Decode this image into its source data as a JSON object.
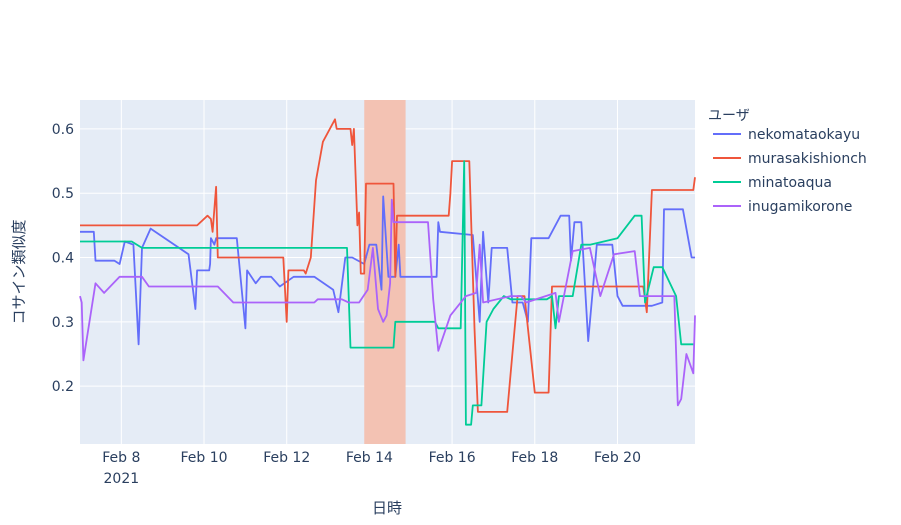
{
  "chart_data": {
    "type": "line",
    "xlabel": "日時",
    "ylabel": "コサイン類似度",
    "xlim": [
      "2021-02-07 00:00",
      "2021-02-21 21:00"
    ],
    "ylim": [
      0.11,
      0.645
    ],
    "x_ticks": [
      {
        "date": "2021-02-08",
        "label": "Feb 8",
        "sublabel": "2021"
      },
      {
        "date": "2021-02-10",
        "label": "Feb 10"
      },
      {
        "date": "2021-02-12",
        "label": "Feb 12"
      },
      {
        "date": "2021-02-14",
        "label": "Feb 14"
      },
      {
        "date": "2021-02-16",
        "label": "Feb 16"
      },
      {
        "date": "2021-02-18",
        "label": "Feb 18"
      },
      {
        "date": "2021-02-20",
        "label": "Feb 20"
      }
    ],
    "y_ticks": [
      0.2,
      0.3,
      0.4,
      0.5,
      0.6
    ],
    "grid": true,
    "background": "#e5ecf6",
    "highlight_band": {
      "x0": "2021-02-13 21:00",
      "x1": "2021-02-14 21:00",
      "color": "#f3c2b3"
    },
    "legend": {
      "title": "ユーザ",
      "position": "right"
    },
    "series": [
      {
        "name": "nekomataokayu",
        "color": "#636efa",
        "points": [
          [
            "2021-02-07 00:00",
            0.44
          ],
          [
            "2021-02-07 08:00",
            0.44
          ],
          [
            "2021-02-07 09:00",
            0.395
          ],
          [
            "2021-02-07 20:00",
            0.395
          ],
          [
            "2021-02-07 23:00",
            0.39
          ],
          [
            "2021-02-08 02:00",
            0.425
          ],
          [
            "2021-02-08 07:00",
            0.42
          ],
          [
            "2021-02-08 10:00",
            0.265
          ],
          [
            "2021-02-08 12:00",
            0.415
          ],
          [
            "2021-02-08 17:00",
            0.445
          ],
          [
            "2021-02-09 15:00",
            0.405
          ],
          [
            "2021-02-09 19:00",
            0.32
          ],
          [
            "2021-02-09 20:00",
            0.38
          ],
          [
            "2021-02-10 03:00",
            0.38
          ],
          [
            "2021-02-10 03:30",
            0.39
          ],
          [
            "2021-02-10 04:00",
            0.43
          ],
          [
            "2021-02-10 06:00",
            0.42
          ],
          [
            "2021-02-10 07:00",
            0.43
          ],
          [
            "2021-02-10 19:00",
            0.43
          ],
          [
            "2021-02-11 00:00",
            0.29
          ],
          [
            "2021-02-11 01:00",
            0.38
          ],
          [
            "2021-02-11 06:00",
            0.36
          ],
          [
            "2021-02-11 09:00",
            0.37
          ],
          [
            "2021-02-11 15:00",
            0.37
          ],
          [
            "2021-02-11 20:00",
            0.355
          ],
          [
            "2021-02-12 04:00",
            0.37
          ],
          [
            "2021-02-12 16:00",
            0.37
          ],
          [
            "2021-02-13 03:00",
            0.35
          ],
          [
            "2021-02-13 06:00",
            0.315
          ],
          [
            "2021-02-13 10:00",
            0.4
          ],
          [
            "2021-02-13 14:00",
            0.4
          ],
          [
            "2021-02-13 21:00",
            0.39
          ],
          [
            "2021-02-14 00:00",
            0.42
          ],
          [
            "2021-02-14 04:00",
            0.42
          ],
          [
            "2021-02-14 07:00",
            0.35
          ],
          [
            "2021-02-14 08:00",
            0.495
          ],
          [
            "2021-02-14 11:00",
            0.37
          ],
          [
            "2021-02-14 15:00",
            0.37
          ],
          [
            "2021-02-14 17:00",
            0.42
          ],
          [
            "2021-02-14 18:00",
            0.37
          ],
          [
            "2021-02-15 15:00",
            0.37
          ],
          [
            "2021-02-15 16:00",
            0.455
          ],
          [
            "2021-02-15 17:00",
            0.44
          ],
          [
            "2021-02-16 12:00",
            0.435
          ],
          [
            "2021-02-16 16:00",
            0.3
          ],
          [
            "2021-02-16 18:00",
            0.44
          ],
          [
            "2021-02-16 21:00",
            0.33
          ],
          [
            "2021-02-16 23:00",
            0.415
          ],
          [
            "2021-02-17 08:00",
            0.415
          ],
          [
            "2021-02-17 11:00",
            0.33
          ],
          [
            "2021-02-17 17:00",
            0.33
          ],
          [
            "2021-02-17 20:00",
            0.3
          ],
          [
            "2021-02-17 22:00",
            0.43
          ],
          [
            "2021-02-18 08:00",
            0.43
          ],
          [
            "2021-02-18 15:00",
            0.465
          ],
          [
            "2021-02-18 20:00",
            0.465
          ],
          [
            "2021-02-18 21:00",
            0.395
          ],
          [
            "2021-02-18 23:00",
            0.455
          ],
          [
            "2021-02-19 03:00",
            0.455
          ],
          [
            "2021-02-19 07:00",
            0.27
          ],
          [
            "2021-02-19 12:00",
            0.42
          ],
          [
            "2021-02-19 21:00",
            0.42
          ],
          [
            "2021-02-20 00:00",
            0.34
          ],
          [
            "2021-02-20 03:00",
            0.325
          ],
          [
            "2021-02-20 20:00",
            0.325
          ],
          [
            "2021-02-21 02:00",
            0.33
          ],
          [
            "2021-02-21 03:00",
            0.475
          ],
          [
            "2021-02-21 14:00",
            0.475
          ],
          [
            "2021-02-21 19:00",
            0.4
          ],
          [
            "2021-02-21 21:00",
            0.4
          ]
        ]
      },
      {
        "name": "murasakishionch",
        "color": "#ef553b",
        "points": [
          [
            "2021-02-07 00:00",
            0.45
          ],
          [
            "2021-02-09 20:00",
            0.45
          ],
          [
            "2021-02-10 02:00",
            0.465
          ],
          [
            "2021-02-10 04:00",
            0.46
          ],
          [
            "2021-02-10 05:00",
            0.44
          ],
          [
            "2021-02-10 07:00",
            0.51
          ],
          [
            "2021-02-10 08:00",
            0.4
          ],
          [
            "2021-02-11 12:00",
            0.4
          ],
          [
            "2021-02-11 22:00",
            0.4
          ],
          [
            "2021-02-12 00:00",
            0.3
          ],
          [
            "2021-02-12 01:00",
            0.38
          ],
          [
            "2021-02-12 10:00",
            0.38
          ],
          [
            "2021-02-12 11:00",
            0.375
          ],
          [
            "2021-02-12 14:00",
            0.4
          ],
          [
            "2021-02-12 17:00",
            0.52
          ],
          [
            "2021-02-12 21:00",
            0.58
          ],
          [
            "2021-02-13 04:00",
            0.615
          ],
          [
            "2021-02-13 05:00",
            0.6
          ],
          [
            "2021-02-13 13:00",
            0.6
          ],
          [
            "2021-02-13 14:00",
            0.575
          ],
          [
            "2021-02-13 15:00",
            0.6
          ],
          [
            "2021-02-13 17:00",
            0.45
          ],
          [
            "2021-02-13 18:00",
            0.47
          ],
          [
            "2021-02-13 19:00",
            0.375
          ],
          [
            "2021-02-13 21:00",
            0.375
          ],
          [
            "2021-02-13 22:00",
            0.515
          ],
          [
            "2021-02-14 14:00",
            0.515
          ],
          [
            "2021-02-14 15:00",
            0.37
          ],
          [
            "2021-02-14 16:00",
            0.465
          ],
          [
            "2021-02-15 22:00",
            0.465
          ],
          [
            "2021-02-15 23:00",
            0.5
          ],
          [
            "2021-02-16 00:00",
            0.55
          ],
          [
            "2021-02-16 10:00",
            0.55
          ],
          [
            "2021-02-16 13:00",
            0.29
          ],
          [
            "2021-02-16 15:00",
            0.16
          ],
          [
            "2021-02-17 08:00",
            0.16
          ],
          [
            "2021-02-17 12:00",
            0.28
          ],
          [
            "2021-02-17 14:00",
            0.34
          ],
          [
            "2021-02-17 18:00",
            0.34
          ],
          [
            "2021-02-18 00:00",
            0.19
          ],
          [
            "2021-02-18 08:00",
            0.19
          ],
          [
            "2021-02-18 10:00",
            0.355
          ],
          [
            "2021-02-19 07:00",
            0.355
          ],
          [
            "2021-02-20 15:00",
            0.355
          ],
          [
            "2021-02-20 17:00",
            0.315
          ],
          [
            "2021-02-20 20:00",
            0.505
          ],
          [
            "2021-02-21 20:00",
            0.505
          ],
          [
            "2021-02-21 21:00",
            0.525
          ]
        ]
      },
      {
        "name": "minatoaqua",
        "color": "#00cc96",
        "points": [
          [
            "2021-02-07 00:00",
            0.425
          ],
          [
            "2021-02-08 06:00",
            0.425
          ],
          [
            "2021-02-08 12:00",
            0.415
          ],
          [
            "2021-02-13 11:00",
            0.415
          ],
          [
            "2021-02-13 13:00",
            0.26
          ],
          [
            "2021-02-14 14:00",
            0.26
          ],
          [
            "2021-02-14 15:00",
            0.3
          ],
          [
            "2021-02-15 14:00",
            0.3
          ],
          [
            "2021-02-15 16:00",
            0.29
          ],
          [
            "2021-02-16 05:00",
            0.29
          ],
          [
            "2021-02-16 07:00",
            0.55
          ],
          [
            "2021-02-16 08:00",
            0.14
          ],
          [
            "2021-02-16 11:00",
            0.14
          ],
          [
            "2021-02-16 12:00",
            0.17
          ],
          [
            "2021-02-16 17:00",
            0.17
          ],
          [
            "2021-02-16 20:00",
            0.3
          ],
          [
            "2021-02-17 00:00",
            0.32
          ],
          [
            "2021-02-17 06:00",
            0.34
          ],
          [
            "2021-02-17 10:00",
            0.335
          ],
          [
            "2021-02-18 07:00",
            0.335
          ],
          [
            "2021-02-18 10:00",
            0.34
          ],
          [
            "2021-02-18 12:00",
            0.29
          ],
          [
            "2021-02-18 14:00",
            0.34
          ],
          [
            "2021-02-18 22:00",
            0.34
          ],
          [
            "2021-02-19 03:00",
            0.42
          ],
          [
            "2021-02-19 08:00",
            0.42
          ],
          [
            "2021-02-20 00:00",
            0.43
          ],
          [
            "2021-02-20 10:00",
            0.465
          ],
          [
            "2021-02-20 14:00",
            0.465
          ],
          [
            "2021-02-20 16:00",
            0.33
          ],
          [
            "2021-02-20 21:00",
            0.385
          ],
          [
            "2021-02-21 02:00",
            0.385
          ],
          [
            "2021-02-21 10:00",
            0.34
          ],
          [
            "2021-02-21 13:00",
            0.265
          ],
          [
            "2021-02-21 21:00",
            0.265
          ]
        ]
      },
      {
        "name": "inugamikorone",
        "color": "#ab63fa",
        "points": [
          [
            "2021-02-07 00:00",
            0.34
          ],
          [
            "2021-02-07 01:00",
            0.33
          ],
          [
            "2021-02-07 02:00",
            0.24
          ],
          [
            "2021-02-07 09:00",
            0.36
          ],
          [
            "2021-02-07 14:00",
            0.345
          ],
          [
            "2021-02-07 23:00",
            0.37
          ],
          [
            "2021-02-08 12:00",
            0.37
          ],
          [
            "2021-02-08 16:00",
            0.355
          ],
          [
            "2021-02-10 08:00",
            0.355
          ],
          [
            "2021-02-10 17:00",
            0.33
          ],
          [
            "2021-02-12 16:00",
            0.33
          ],
          [
            "2021-02-12 18:00",
            0.335
          ],
          [
            "2021-02-13 08:00",
            0.335
          ],
          [
            "2021-02-13 12:00",
            0.33
          ],
          [
            "2021-02-13 18:00",
            0.33
          ],
          [
            "2021-02-13 23:00",
            0.35
          ],
          [
            "2021-02-14 02:00",
            0.415
          ],
          [
            "2021-02-14 05:00",
            0.32
          ],
          [
            "2021-02-14 08:00",
            0.3
          ],
          [
            "2021-02-14 10:00",
            0.31
          ],
          [
            "2021-02-14 12:00",
            0.36
          ],
          [
            "2021-02-14 13:00",
            0.49
          ],
          [
            "2021-02-14 14:00",
            0.455
          ],
          [
            "2021-02-15 10:00",
            0.455
          ],
          [
            "2021-02-15 13:00",
            0.335
          ],
          [
            "2021-02-15 16:00",
            0.255
          ],
          [
            "2021-02-15 23:00",
            0.31
          ],
          [
            "2021-02-16 08:00",
            0.34
          ],
          [
            "2021-02-16 14:00",
            0.345
          ],
          [
            "2021-02-16 16:00",
            0.42
          ],
          [
            "2021-02-16 18:00",
            0.33
          ],
          [
            "2021-02-17 10:00",
            0.34
          ],
          [
            "2021-02-17 16:00",
            0.34
          ],
          [
            "2021-02-17 19:00",
            0.33
          ],
          [
            "2021-02-18 12:00",
            0.345
          ],
          [
            "2021-02-18 14:00",
            0.3
          ],
          [
            "2021-02-18 22:00",
            0.41
          ],
          [
            "2021-02-19 08:00",
            0.415
          ],
          [
            "2021-02-19 14:00",
            0.34
          ],
          [
            "2021-02-19 22:00",
            0.405
          ],
          [
            "2021-02-20 10:00",
            0.41
          ],
          [
            "2021-02-20 13:00",
            0.34
          ],
          [
            "2021-02-21 09:00",
            0.34
          ],
          [
            "2021-02-21 11:00",
            0.17
          ],
          [
            "2021-02-21 13:00",
            0.18
          ],
          [
            "2021-02-21 16:00",
            0.25
          ],
          [
            "2021-02-21 20:00",
            0.22
          ],
          [
            "2021-02-21 21:00",
            0.31
          ]
        ]
      }
    ]
  }
}
